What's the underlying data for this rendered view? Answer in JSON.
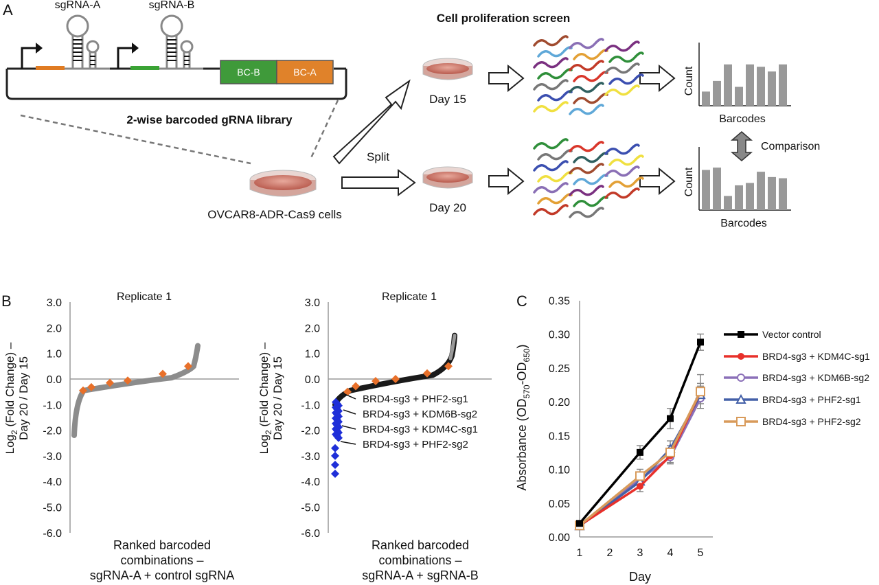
{
  "panelA": {
    "letter": "A",
    "sgA": "sgRNA-A",
    "sgB": "sgRNA-B",
    "bcB": "BC-B",
    "bcA": "BC-A",
    "library": "2-wise barcoded gRNA library",
    "cells": "OVCAR8-ADR-Cas9 cells",
    "screen": "Cell proliferation screen",
    "split": "Split",
    "day15": "Day 15",
    "day20": "Day 20",
    "count": "Count",
    "barcodes": "Barcodes",
    "comparison": "Comparison",
    "bars_top": [
      0.24,
      0.42,
      0.7,
      0.32,
      0.7,
      0.66,
      0.58,
      0.7
    ],
    "bars_bottom": [
      0.68,
      0.72,
      0.24,
      0.42,
      0.46,
      0.65,
      0.56,
      0.54
    ],
    "colors": {
      "orange": "#e07b22",
      "green": "#3aa335",
      "box_green": "#3f9a3a",
      "box_orange": "#e0822a",
      "bar_gray": "#999999",
      "dish": "#c9685b"
    }
  },
  "panelB": {
    "letter": "B",
    "ylabel_main": "Log",
    "ylabel_sub": "2",
    "ylabel_rest": " (Fold Change) –",
    "ylabel2": "Day 20 / Day 15",
    "plot1": {
      "title": "Replicate 1",
      "xlabel1": "Ranked barcoded",
      "xlabel2": "combinations –",
      "xlabel3": "sgRNA-A + control sgRNA"
    },
    "plot2": {
      "title": "Replicate 1",
      "xlabel1": "Ranked barcoded",
      "xlabel2": "combinations –",
      "xlabel3": "sgRNA-A + sgRNA-B",
      "annotations": [
        "BRD4-sg3 + PHF2-sg1",
        "BRD4-sg3 + KDM6B-sg2",
        "BRD4-sg3 + KDM4C-sg1",
        "BRD4-sg3 + PHF2-sg2"
      ]
    },
    "ticks": [
      "3.0",
      "2.0",
      "1.0",
      "0.0",
      "-1.0",
      "-2.0",
      "-3.0",
      "-4.0",
      "-5.0",
      "-6.0"
    ]
  },
  "chart_data": [
    {
      "type": "scatter",
      "title": "Replicate 1",
      "ylabel": "Log2 (Fold Change) – Day 20 / Day 15",
      "xlabel": "Ranked barcoded combinations – sgRNA-A + control sgRNA",
      "ylim": [
        -6,
        3
      ],
      "series": [
        {
          "values": [
            -0.45,
            -0.32,
            -0.15,
            -0.08,
            0.0,
            0.22,
            0.5
          ]
        }
      ]
    },
    {
      "type": "scatter",
      "title": "Replicate 1",
      "ylabel": "Log2 (Fold Change) – Day 20 / Day 15",
      "xlabel": "Ranked barcoded combinations – sgRNA-A + sgRNA-B",
      "ylim": [
        -6,
        3
      ],
      "series": [
        {
          "values": [
            -0.5,
            -0.3,
            -0.1,
            0.0,
            0.05,
            0.2,
            0.5
          ]
        },
        {
          "values": [
            -1.0,
            -1.3,
            -1.6,
            -1.9,
            -2.2,
            -2.6,
            -3.0,
            -3.35,
            -3.7
          ]
        }
      ]
    },
    {
      "type": "line",
      "ylabel": "Absorbance (OD570-OD650)",
      "xlabel": "Day",
      "x": [
        1,
        3,
        4,
        5
      ],
      "ylim": [
        0,
        0.35
      ],
      "series": [
        {
          "name": "Vector control",
          "values": [
            0.02,
            0.125,
            0.175,
            0.288
          ],
          "errors": [
            0.003,
            0.01,
            0.015,
            0.012
          ]
        },
        {
          "name": "BRD4-sg3 + KDM4C-sg1",
          "values": [
            0.017,
            0.075,
            0.12,
            0.215
          ],
          "errors": [
            0.003,
            0.008,
            0.01,
            0.012
          ]
        },
        {
          "name": "BRD4-sg3 + KDM6B-sg2",
          "values": [
            0.016,
            0.085,
            0.118,
            0.205
          ],
          "errors": [
            0.003,
            0.01,
            0.01,
            0.015
          ]
        },
        {
          "name": "BRD4-sg3 + PHF2-sg1",
          "values": [
            0.016,
            0.082,
            0.13,
            0.21
          ],
          "errors": [
            0.003,
            0.008,
            0.012,
            0.013
          ]
        },
        {
          "name": "BRD4-sg3 + PHF2-sg2",
          "values": [
            0.017,
            0.09,
            0.125,
            0.215
          ],
          "errors": [
            0.003,
            0.01,
            0.01,
            0.025
          ]
        }
      ]
    }
  ],
  "panelC": {
    "letter": "C",
    "ylabel_a": "Absorbance (OD",
    "ylabel_s1": "570",
    "ylabel_b": "-OD",
    "ylabel_s2": "650",
    "ylabel_c": ")",
    "xlabel": "Day",
    "yticks": [
      "0.35",
      "0.30",
      "0.25",
      "0.20",
      "0.15",
      "0.10",
      "0.05",
      "0.00"
    ],
    "xticks": [
      "1",
      "2",
      "3",
      "4",
      "5"
    ],
    "colors": [
      "#000000",
      "#e8302a",
      "#8b70b8",
      "#4460a8",
      "#d89a5a"
    ]
  }
}
